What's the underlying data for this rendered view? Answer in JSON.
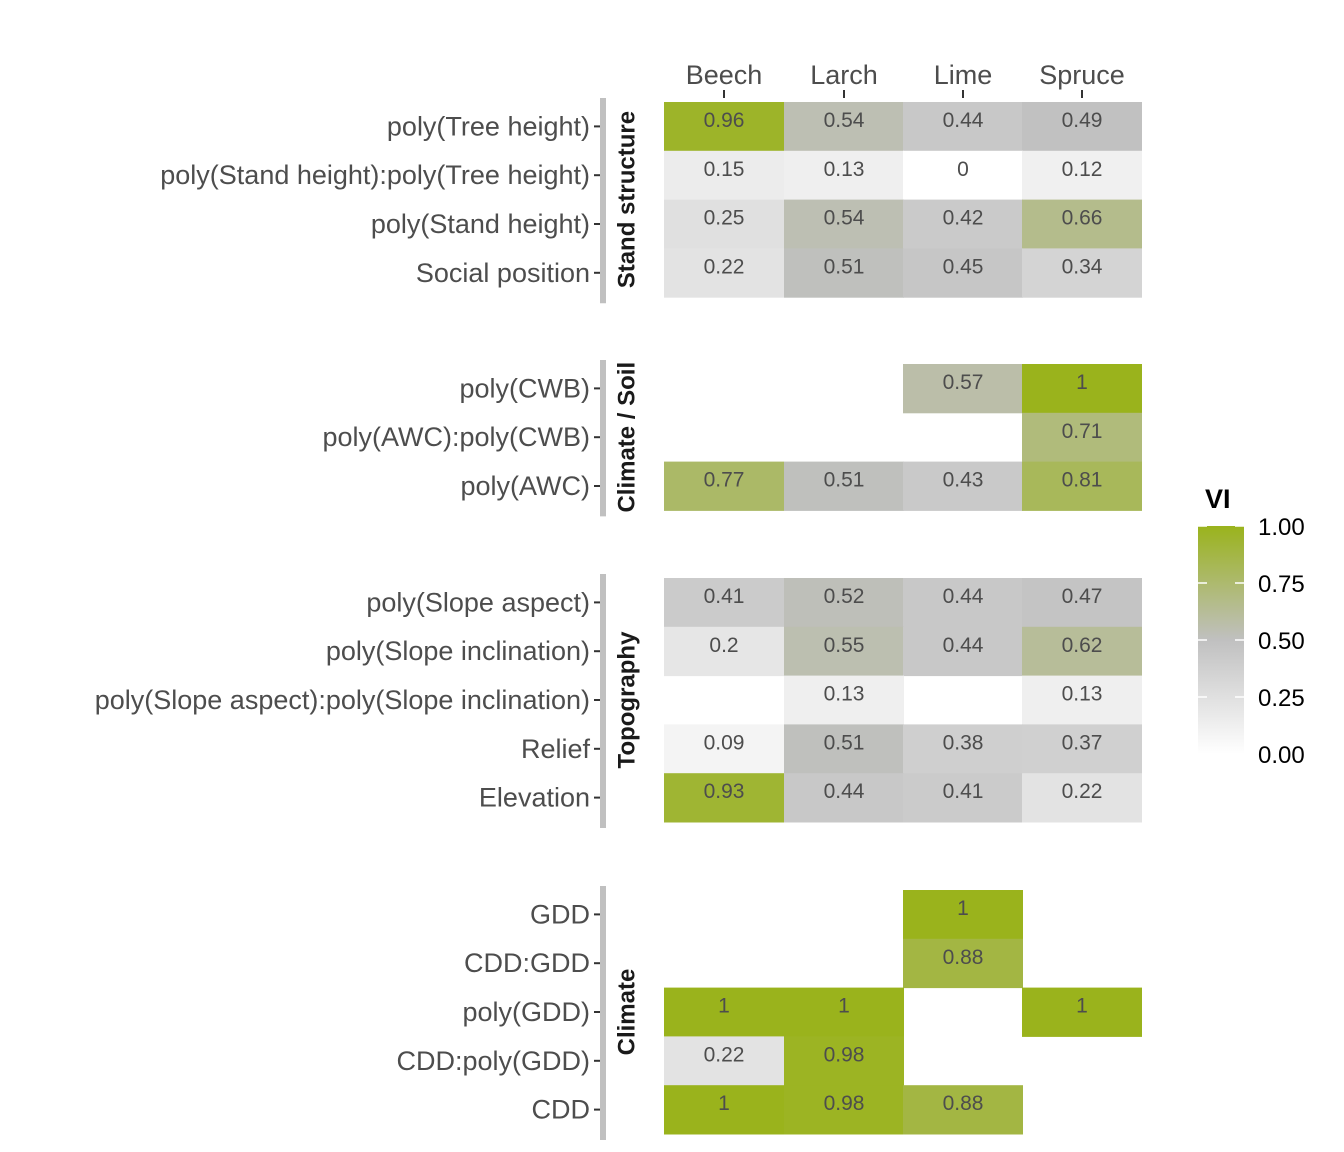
{
  "colors": {
    "low": "#FFFFFF",
    "mid": "#C0C0C0",
    "high": "#9AB31C",
    "strip": "#C0C0C0",
    "tick": "#333333"
  },
  "chart_data": {
    "type": "heatmap",
    "columns": [
      "Beech",
      "Larch",
      "Lime",
      "Spruce"
    ],
    "fill_scale": {
      "limits": [
        0,
        1
      ],
      "low": "#FFFFFF",
      "mid": "#C0C0C0",
      "high": "#9AB31C"
    },
    "legend": {
      "title": "VI",
      "breaks": [
        1.0,
        0.75,
        0.5,
        0.25,
        0.0
      ],
      "labels": [
        "1.00",
        "0.75",
        "0.50",
        "0.25",
        "0.00"
      ],
      "position": "right"
    },
    "facets": [
      {
        "label": "Stand structure",
        "rows": [
          {
            "label": "poly(Tree height)",
            "values": [
              0.96,
              0.54,
              0.44,
              0.49
            ],
            "labels": [
              "0.96",
              "0.54",
              "0.44",
              "0.49"
            ]
          },
          {
            "label": "poly(Stand height):poly(Tree height)",
            "values": [
              0.15,
              0.13,
              0,
              0.12
            ],
            "labels": [
              "0.15",
              "0.13",
              "0",
              "0.12"
            ]
          },
          {
            "label": "poly(Stand height)",
            "values": [
              0.25,
              0.54,
              0.42,
              0.66
            ],
            "labels": [
              "0.25",
              "0.54",
              "0.42",
              "0.66"
            ]
          },
          {
            "label": "Social position",
            "values": [
              0.22,
              0.51,
              0.45,
              0.34
            ],
            "labels": [
              "0.22",
              "0.51",
              "0.45",
              "0.34"
            ]
          }
        ]
      },
      {
        "label": "Climate / Soil",
        "rows": [
          {
            "label": "poly(CWB)",
            "values": [
              null,
              null,
              0.57,
              1
            ],
            "labels": [
              null,
              null,
              "0.57",
              "1"
            ]
          },
          {
            "label": "poly(AWC):poly(CWB)",
            "values": [
              null,
              null,
              null,
              0.71
            ],
            "labels": [
              null,
              null,
              null,
              "0.71"
            ]
          },
          {
            "label": "poly(AWC)",
            "values": [
              0.77,
              0.51,
              0.43,
              0.81
            ],
            "labels": [
              "0.77",
              "0.51",
              "0.43",
              "0.81"
            ]
          }
        ]
      },
      {
        "label": "Topography",
        "rows": [
          {
            "label": "poly(Slope aspect)",
            "values": [
              0.41,
              0.52,
              0.44,
              0.47
            ],
            "labels": [
              "0.41",
              "0.52",
              "0.44",
              "0.47"
            ]
          },
          {
            "label": "poly(Slope inclination)",
            "values": [
              0.2,
              0.55,
              0.44,
              0.62
            ],
            "labels": [
              "0.2",
              "0.55",
              "0.44",
              "0.62"
            ]
          },
          {
            "label": "poly(Slope aspect):poly(Slope inclination)",
            "values": [
              null,
              0.13,
              null,
              0.13
            ],
            "labels": [
              null,
              "0.13",
              null,
              "0.13"
            ]
          },
          {
            "label": "Relief",
            "values": [
              0.09,
              0.51,
              0.38,
              0.37
            ],
            "labels": [
              "0.09",
              "0.51",
              "0.38",
              "0.37"
            ]
          },
          {
            "label": "Elevation",
            "values": [
              0.93,
              0.44,
              0.41,
              0.22
            ],
            "labels": [
              "0.93",
              "0.44",
              "0.41",
              "0.22"
            ]
          }
        ]
      },
      {
        "label": "Climate",
        "rows": [
          {
            "label": "GDD",
            "values": [
              null,
              null,
              1,
              null
            ],
            "labels": [
              null,
              null,
              "1",
              null
            ]
          },
          {
            "label": "CDD:GDD",
            "values": [
              null,
              null,
              0.88,
              null
            ],
            "labels": [
              null,
              null,
              "0.88",
              null
            ]
          },
          {
            "label": "poly(GDD)",
            "values": [
              1,
              1,
              null,
              1
            ],
            "labels": [
              "1",
              "1",
              null,
              "1"
            ]
          },
          {
            "label": "CDD:poly(GDD)",
            "values": [
              0.22,
              0.98,
              null,
              null
            ],
            "labels": [
              "0.22",
              "0.98",
              null,
              null
            ]
          },
          {
            "label": "CDD",
            "values": [
              1,
              0.98,
              0.88,
              null
            ],
            "labels": [
              "1",
              "0.98",
              "0.88",
              null
            ]
          }
        ]
      }
    ]
  }
}
